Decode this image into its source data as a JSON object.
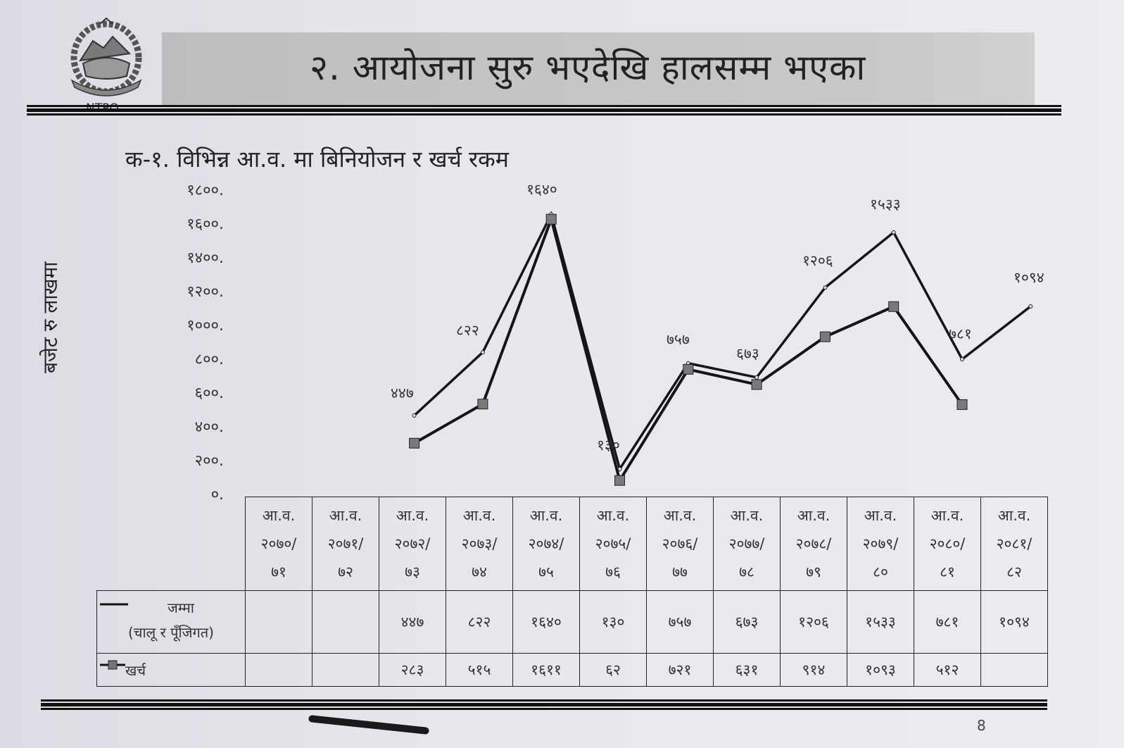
{
  "header": {
    "logo_text": "NTPO",
    "banner_title": "२. आयोजना सुरु भएदेखि हालसम्म भएका"
  },
  "section": {
    "subtitle": "क-१. विभिन्न आ.व. मा  बिनियोजन र खर्च रकम"
  },
  "chart_data": {
    "type": "line",
    "title": "क-१. विभिन्न आ.व. मा  बिनियोजन र खर्च रकम",
    "xlabel": "",
    "ylabel": "बजेट रु लाखमा",
    "ylim": [
      0,
      1800
    ],
    "yticks": [
      "१८००.",
      "१६००.",
      "१४००.",
      "१२००.",
      "१०००.",
      "८००.",
      "६००.",
      "४००.",
      "२००.",
      "०."
    ],
    "ytick_values": [
      1800,
      1600,
      1400,
      1200,
      1000,
      800,
      600,
      400,
      200,
      0
    ],
    "categories": [
      "आ.व. २०७०/७१",
      "आ.व. २०७१/७२",
      "आ.व. २०७२/७३",
      "आ.व. २०७३/७४",
      "आ.व. २०७४/७५",
      "आ.व. २०७५/७६",
      "आ.व. २०७६/७७",
      "आ.व. २०७७/७८",
      "आ.व. २०७८/७९",
      "आ.व. २०७९/८०",
      "आ.व. २०८०/८१",
      "आ.व. २०८१/८२"
    ],
    "series": [
      {
        "name": "जम्मा (चालू र पूँजिगत)",
        "marker": "none",
        "values": [
          null,
          null,
          447,
          822,
          1640,
          130,
          757,
          673,
          1206,
          1533,
          781,
          1094
        ],
        "labels": [
          "",
          "",
          "४४७",
          "८२२",
          "१६४०",
          "१३०",
          "७५७",
          "६७३",
          "१२०६",
          "१५३३",
          "७८१",
          "१०९४"
        ]
      },
      {
        "name": "खर्च",
        "marker": "square",
        "values": [
          null,
          null,
          283,
          515,
          1611,
          62,
          721,
          631,
          914,
          1093,
          512,
          null
        ],
        "labels": [
          "",
          "",
          "२८३",
          "५१५",
          "१६११",
          "६२",
          "७२१",
          "६३१",
          "९१४",
          "१०९३",
          "५१२",
          ""
        ]
      }
    ],
    "grid": false,
    "legend_position": "table-left"
  },
  "table": {
    "headers": [
      {
        "l1": "आ.व.",
        "l2": "२०७०/",
        "l3": "७१"
      },
      {
        "l1": "आ.व.",
        "l2": "२०७१/",
        "l3": "७२"
      },
      {
        "l1": "आ.व.",
        "l2": "२०७२/",
        "l3": "७३"
      },
      {
        "l1": "आ.व.",
        "l2": "२०७३/",
        "l3": "७४"
      },
      {
        "l1": "आ.व.",
        "l2": "२०७४/",
        "l3": "७५"
      },
      {
        "l1": "आ.व.",
        "l2": "२०७५/",
        "l3": "७६"
      },
      {
        "l1": "आ.व.",
        "l2": "२०७६/",
        "l3": "७७"
      },
      {
        "l1": "आ.व.",
        "l2": "२०७७/",
        "l3": "७८"
      },
      {
        "l1": "आ.व.",
        "l2": "२०७८/",
        "l3": "७९"
      },
      {
        "l1": "आ.व.",
        "l2": "२०७९/",
        "l3": "८०"
      },
      {
        "l1": "आ.व.",
        "l2": "२०८०/",
        "l3": "८१"
      },
      {
        "l1": "आ.व.",
        "l2": "२०८१/",
        "l3": "८२"
      }
    ],
    "row_total_label_1": "जम्मा",
    "row_total_label_2": "(चालू र पूँजिगत)",
    "row_total": [
      "",
      "",
      "४४७",
      "८२२",
      "१६४०",
      "१३०",
      "७५७",
      "६७३",
      "१२०६",
      "१५३३",
      "७८१",
      "१०९४"
    ],
    "row_expense_label": "खर्च",
    "row_expense": [
      "",
      "",
      "२८३",
      "५१५",
      "१६११",
      "६२",
      "७२१",
      "६३१",
      "९१४",
      "१०९३",
      "५१२",
      ""
    ]
  },
  "footer": {
    "page_number": "8"
  }
}
